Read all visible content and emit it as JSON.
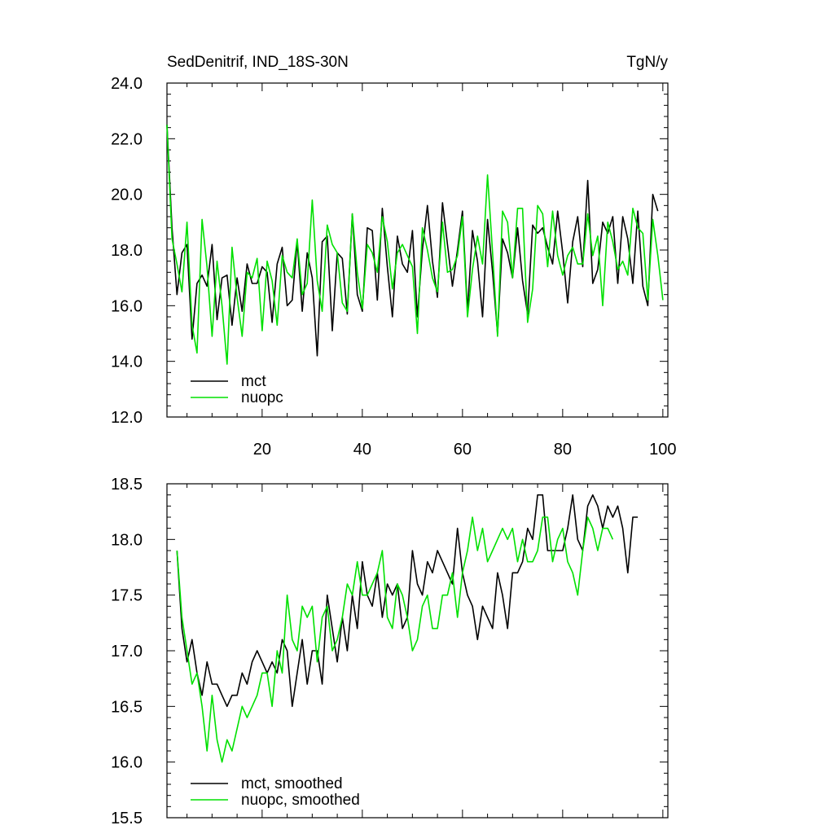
{
  "colors": {
    "mct": "#000000",
    "nuopc": "#00e000"
  },
  "chart_data": [
    {
      "type": "line",
      "title": "SedDenitrif, IND_18S-30N",
      "units": "TgN/y",
      "xlim": [
        1,
        101
      ],
      "ylim": [
        12.0,
        24.0
      ],
      "x_ticks": [
        20,
        40,
        60,
        80,
        100
      ],
      "y_ticks": [
        "12.0",
        "14.0",
        "16.0",
        "18.0",
        "20.0",
        "22.0",
        "24.0"
      ],
      "y_tick_values": [
        12,
        14,
        16,
        18,
        20,
        22,
        24
      ],
      "legend_position": "bottom-left",
      "x_start": 1,
      "series": [
        {
          "name": "mct",
          "color_key": "mct",
          "values": [
            22.5,
            18.8,
            16.4,
            17.9,
            18.2,
            14.8,
            16.8,
            17.1,
            16.7,
            18.2,
            15.5,
            17.0,
            17.1,
            15.3,
            17.0,
            15.8,
            17.5,
            16.8,
            16.8,
            17.4,
            17.2,
            15.4,
            17.5,
            18.1,
            16.0,
            16.2,
            18.3,
            15.8,
            17.9,
            17.0,
            14.2,
            18.3,
            18.5,
            15.1,
            17.9,
            17.7,
            15.7,
            19.3,
            16.4,
            15.8,
            18.8,
            18.7,
            16.2,
            19.5,
            17.4,
            15.6,
            18.5,
            17.5,
            17.2,
            18.7,
            15.6,
            18.0,
            19.6,
            17.6,
            16.3,
            19.7,
            18.2,
            16.7,
            18.0,
            19.4,
            15.8,
            18.7,
            17.6,
            15.6,
            19.1,
            17.2,
            15.0,
            18.4,
            17.9,
            17.0,
            18.8,
            16.9,
            15.7,
            18.9,
            18.6,
            18.8,
            18.1,
            17.5,
            19.4,
            17.9,
            16.1,
            18.3,
            19.2,
            17.4,
            20.5,
            16.8,
            17.3,
            19.0,
            18.6,
            19.2,
            16.8,
            19.2,
            18.4,
            16.8,
            19.4,
            16.7,
            16.0,
            20.0,
            19.4
          ]
        },
        {
          "name": "nuopc",
          "color_key": "nuopc",
          "values": [
            22.5,
            18.4,
            17.5,
            16.5,
            19.0,
            15.3,
            14.3,
            19.1,
            17.4,
            14.9,
            17.6,
            16.0,
            13.9,
            18.1,
            16.3,
            14.9,
            17.2,
            17.0,
            17.7,
            15.1,
            17.6,
            16.9,
            15.3,
            17.8,
            17.2,
            17.0,
            18.4,
            16.4,
            16.8,
            19.8,
            16.9,
            15.8,
            18.9,
            18.2,
            17.9,
            16.1,
            15.8,
            19.3,
            17.2,
            15.9,
            18.2,
            17.9,
            17.2,
            19.2,
            18.3,
            16.6,
            17.9,
            18.2,
            17.8,
            17.4,
            15.0,
            18.8,
            18.0,
            17.0,
            16.5,
            19.0,
            17.2,
            17.3,
            17.8,
            19.2,
            15.6,
            17.3,
            18.5,
            17.5,
            20.7,
            17.9,
            14.9,
            19.4,
            19.0,
            17.0,
            19.5,
            19.5,
            15.4,
            16.6,
            19.6,
            19.3,
            17.4,
            19.4,
            17.8,
            17.1,
            17.8,
            18.1,
            17.5,
            17.5,
            19.3,
            17.8,
            18.5,
            16.0,
            19.0,
            18.3,
            17.3,
            17.6,
            17.1,
            19.5,
            18.8,
            18.6,
            16.2,
            19.1,
            17.8,
            16.2
          ]
        }
      ],
      "legend": [
        {
          "label": "mct",
          "color_key": "mct"
        },
        {
          "label": "nuopc",
          "color_key": "nuopc"
        }
      ]
    },
    {
      "type": "line",
      "xlim": [
        1,
        101
      ],
      "ylim": [
        15.5,
        18.5
      ],
      "x_ticks": [
        20,
        40,
        60,
        80,
        100
      ],
      "y_ticks": [
        "15.5",
        "16.0",
        "16.5",
        "17.0",
        "17.5",
        "18.0",
        "18.5"
      ],
      "y_tick_values": [
        15.5,
        16.0,
        16.5,
        17.0,
        17.5,
        18.0,
        18.5
      ],
      "legend_position": "bottom-left",
      "x_start": 3,
      "series": [
        {
          "name": "mct, smoothed",
          "color_key": "mct",
          "values": [
            17.9,
            17.2,
            16.9,
            17.1,
            16.8,
            16.6,
            16.9,
            16.7,
            16.7,
            16.6,
            16.5,
            16.6,
            16.6,
            16.8,
            16.7,
            16.9,
            17.0,
            16.9,
            16.8,
            16.9,
            16.8,
            17.1,
            17.0,
            16.5,
            16.8,
            17.1,
            16.7,
            17.0,
            17.0,
            16.7,
            17.5,
            17.2,
            16.9,
            17.3,
            17.0,
            17.5,
            17.2,
            17.8,
            17.5,
            17.4,
            17.7,
            17.3,
            17.6,
            17.5,
            17.6,
            17.2,
            17.3,
            17.9,
            17.6,
            17.5,
            17.8,
            17.7,
            17.9,
            17.8,
            17.7,
            17.6,
            18.1,
            17.7,
            17.5,
            17.4,
            17.1,
            17.4,
            17.3,
            17.2,
            17.7,
            17.5,
            17.2,
            17.7,
            17.7,
            17.8,
            18.1,
            18.0,
            18.4,
            18.4,
            17.9,
            17.9,
            17.9,
            17.9,
            18.1,
            18.4,
            18.0,
            17.9,
            18.3,
            18.4,
            18.3,
            18.1,
            18.3,
            18.2,
            18.3,
            18.1,
            17.7,
            18.2,
            18.2
          ]
        },
        {
          "name": "nuopc, smoothed",
          "color_key": "nuopc",
          "values": [
            17.9,
            17.3,
            17.0,
            16.7,
            16.8,
            16.5,
            16.1,
            16.6,
            16.2,
            16.0,
            16.2,
            16.1,
            16.3,
            16.5,
            16.4,
            16.5,
            16.6,
            16.8,
            16.8,
            16.5,
            17.0,
            16.8,
            17.5,
            17.1,
            17.0,
            17.4,
            17.3,
            17.4,
            16.9,
            17.3,
            17.4,
            17.0,
            17.1,
            17.3,
            17.6,
            17.5,
            17.8,
            17.5,
            17.5,
            17.6,
            17.7,
            17.9,
            17.3,
            17.2,
            17.6,
            17.5,
            17.3,
            17.0,
            17.1,
            17.4,
            17.5,
            17.2,
            17.2,
            17.5,
            17.5,
            17.7,
            17.3,
            17.7,
            17.9,
            18.2,
            17.9,
            18.1,
            17.8,
            17.9,
            18.0,
            18.1,
            18.0,
            18.1,
            17.8,
            18.0,
            17.8,
            17.8,
            17.9,
            18.2,
            18.2,
            17.8,
            18.0,
            18.1,
            17.8,
            17.7,
            17.5,
            17.9,
            18.2,
            18.1,
            17.9,
            18.1,
            18.1,
            18.0
          ]
        }
      ],
      "legend": [
        {
          "label": "mct, smoothed",
          "color_key": "mct"
        },
        {
          "label": "nuopc, smoothed",
          "color_key": "nuopc"
        }
      ]
    }
  ]
}
